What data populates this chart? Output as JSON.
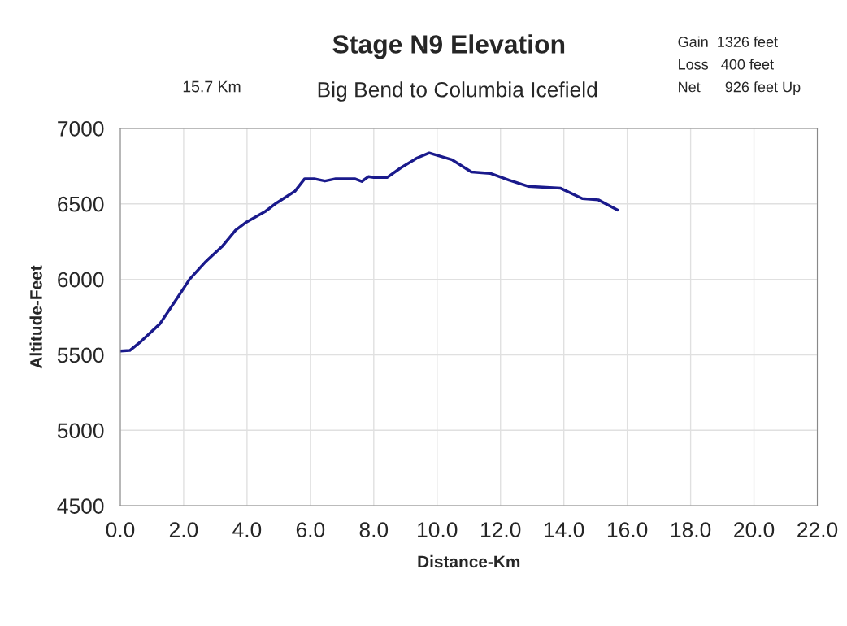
{
  "chart_data": {
    "type": "line",
    "title": "Stage N9 Elevation",
    "subtitle": "Big Bend to Columbia Icefield",
    "xlabel": "Distance-Km",
    "ylabel": "Altitude-Feet",
    "annotations": [
      "15.7 Km",
      "Gain  1326 feet",
      "Loss   400 feet",
      "Net      926 feet Up"
    ],
    "x": [
      0,
      0.3,
      0.65,
      1.25,
      1.85,
      2.19,
      2.7,
      3.21,
      3.64,
      3.98,
      4.58,
      4.92,
      5.52,
      5.82,
      6.12,
      6.46,
      6.8,
      7.4,
      7.62,
      7.83,
      8.0,
      8.43,
      8.85,
      9.37,
      9.75,
      10.05,
      10.48,
      11.08,
      11.67,
      12.27,
      12.87,
      13.9,
      14.58,
      15.09,
      15.69
    ],
    "series": [
      {
        "color": "#1a1a8c",
        "values": [
          5525,
          5529,
          5588,
          5705,
          5893,
          6001,
          6118,
          6217,
          6325,
          6379,
          6450,
          6504,
          6585,
          6666,
          6666,
          6651,
          6666,
          6666,
          6648,
          6680,
          6675,
          6675,
          6738,
          6804,
          6837,
          6818,
          6791,
          6711,
          6702,
          6657,
          6616,
          6603,
          6535,
          6526,
          6459
        ]
      }
    ],
    "xlim": [
      0,
      22
    ],
    "ylim": [
      4500,
      7000
    ],
    "xticks": [
      {
        "value": 0,
        "label": "0.0"
      },
      {
        "value": 2,
        "label": "2.0"
      },
      {
        "value": 4,
        "label": "4.0"
      },
      {
        "value": 6,
        "label": "6.0"
      },
      {
        "value": 8,
        "label": "8.0"
      },
      {
        "value": 10,
        "label": "10.0"
      },
      {
        "value": 12,
        "label": "12.0"
      },
      {
        "value": 14,
        "label": "14.0"
      },
      {
        "value": 16,
        "label": "16.0"
      },
      {
        "value": 18,
        "label": "18.0"
      },
      {
        "value": 20,
        "label": "20.0"
      },
      {
        "value": 22,
        "label": "22.0"
      }
    ],
    "yticks": [
      4500,
      5000,
      5500,
      6000,
      6500,
      7000
    ],
    "grid": true,
    "legend": false,
    "marker": "none",
    "line_style": "solid"
  }
}
